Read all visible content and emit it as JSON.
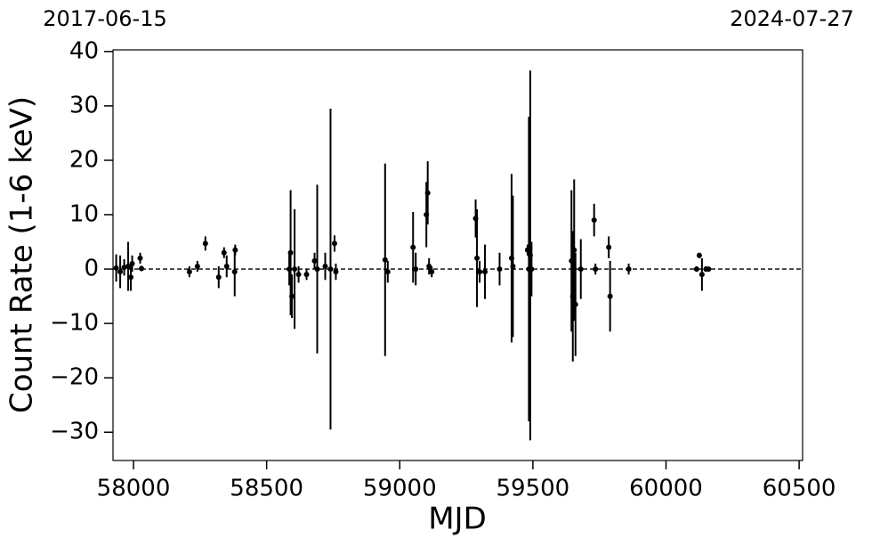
{
  "chart_data": {
    "type": "errorbar-scatter",
    "xlabel": "MJD",
    "ylabel": "Count Rate (1-6 keV)",
    "top_labels": [
      "2017-06-15",
      "2024-07-27"
    ],
    "xlim": [
      57923,
      60513
    ],
    "ylim": [
      -35.2,
      40.3
    ],
    "xticks": [
      58000,
      58500,
      59000,
      59500,
      60000,
      60500
    ],
    "yticks": [
      {
        "value": -30,
        "label": "−30"
      },
      {
        "value": -20,
        "label": "−20"
      },
      {
        "value": -10,
        "label": "−10"
      },
      0,
      10,
      20,
      30,
      40
    ],
    "reference_line": 0,
    "color": "#000000",
    "x": [
      57935,
      57950,
      57965,
      57980,
      57990,
      57995,
      58025,
      58030,
      58210,
      58240,
      58270,
      58320,
      58340,
      58350,
      58380,
      58382,
      58585,
      58590,
      58595,
      58605,
      58620,
      58650,
      58680,
      58690,
      58720,
      58740,
      58755,
      58760,
      58945,
      58955,
      59050,
      59060,
      59100,
      59105,
      59110,
      59120,
      59285,
      59290,
      59300,
      59320,
      59375,
      59420,
      59425,
      59480,
      59485,
      59490,
      59495,
      59645,
      59650,
      59655,
      59660,
      59680,
      59730,
      59735,
      59785,
      59790,
      59860,
      60115,
      60125,
      60135,
      60150,
      60160
    ],
    "y": [
      0.2,
      -0.5,
      0.3,
      0.5,
      -1.5,
      1,
      2,
      0.1,
      -0.5,
      0.5,
      4.7,
      -1.5,
      3,
      0.5,
      -0.5,
      3.5,
      0,
      3,
      -5,
      0,
      -1,
      -1,
      1.5,
      0,
      0.5,
      0,
      4.7,
      -0.5,
      1.7,
      -0.5,
      4,
      0,
      10,
      14,
      0.5,
      -0.5,
      9.3,
      2,
      -0.5,
      -0.5,
      0,
      2,
      0.5,
      3.5,
      0,
      2.5,
      0,
      1.5,
      -5,
      3.5,
      -6.5,
      0,
      9,
      0,
      4,
      -5,
      0,
      0,
      2.5,
      -1,
      0,
      0
    ],
    "yerr": [
      2.5,
      3,
      1.5,
      4.5,
      2.5,
      1.5,
      1,
      0.5,
      1,
      1,
      1.3,
      2,
      1,
      2,
      4.5,
      1,
      3,
      11.5,
      4,
      11,
      1.5,
      1,
      1.5,
      15.5,
      2.5,
      29.5,
      1.5,
      1.5,
      17.7,
      2,
      6.5,
      3,
      6,
      5.8,
      1.5,
      1,
      3.5,
      9,
      2,
      5,
      3,
      15.5,
      13,
      1,
      28,
      34,
      5,
      13,
      12,
      13,
      9.5,
      5.5,
      3,
      1,
      2,
      6.5,
      1,
      0.5,
      0.5,
      3,
      0.5,
      0.4
    ]
  }
}
